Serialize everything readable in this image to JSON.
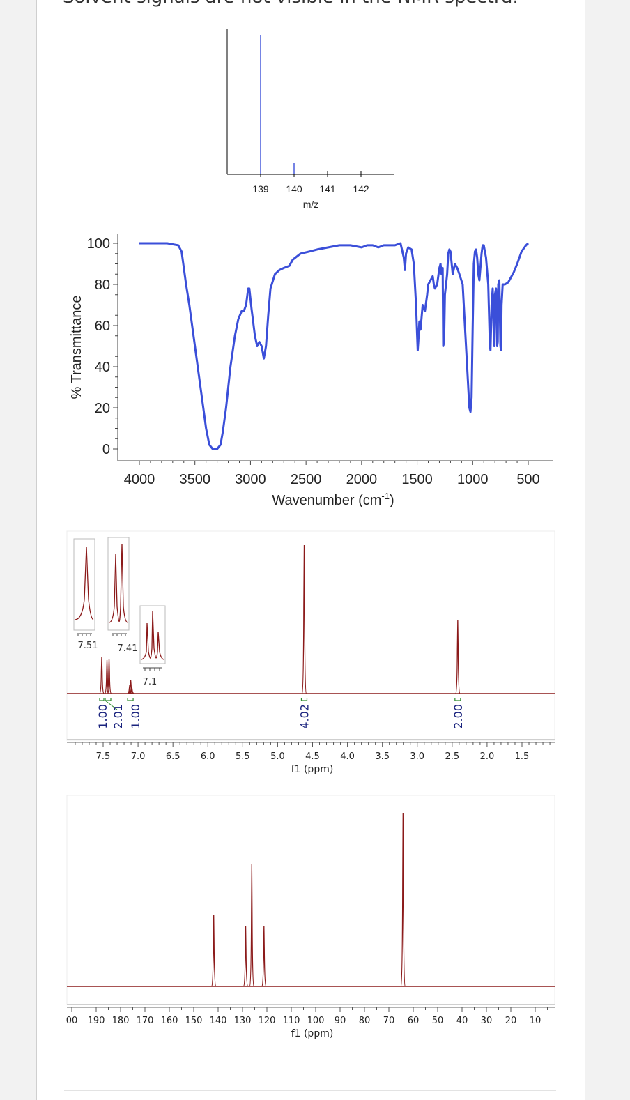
{
  "heading": "Solvent signals are not visible in the NMR spectra.",
  "colors": {
    "ms": "#3b4fd9",
    "ir": "#3b4fd9",
    "nmr": "#8b1a1a",
    "integral": "#2e8b2e",
    "integral_label": "#1a237e"
  },
  "chart_data": [
    {
      "type": "bar",
      "xlabel": "m/z",
      "x_ticks": [
        "139",
        "140",
        "141",
        "142"
      ],
      "xlim": [
        138,
        143
      ],
      "ylim": [
        0,
        100
      ],
      "peaks": [
        {
          "mz": 139,
          "intensity": 100
        },
        {
          "mz": 140,
          "intensity": 8
        }
      ]
    },
    {
      "type": "line",
      "xlabel": "Wavenumber (cm",
      "xlabel_sup": "-1",
      "xlabel_close": ")",
      "ylabel": "% Transmittance",
      "xlim": [
        4200,
        400
      ],
      "ylim": [
        -4,
        104
      ],
      "x_ticks": [
        "4000",
        "3500",
        "3000",
        "2500",
        "2000",
        "1500",
        "1000",
        "500"
      ],
      "y_ticks": [
        "0",
        "20",
        "40",
        "60",
        "80",
        "100"
      ],
      "points": [
        [
          4000,
          100
        ],
        [
          3750,
          100
        ],
        [
          3650,
          99
        ],
        [
          3620,
          96
        ],
        [
          3580,
          80
        ],
        [
          3550,
          70
        ],
        [
          3500,
          50
        ],
        [
          3450,
          30
        ],
        [
          3400,
          10
        ],
        [
          3370,
          2
        ],
        [
          3340,
          0
        ],
        [
          3300,
          0
        ],
        [
          3270,
          2
        ],
        [
          3250,
          8
        ],
        [
          3220,
          20
        ],
        [
          3180,
          40
        ],
        [
          3140,
          55
        ],
        [
          3110,
          63
        ],
        [
          3080,
          67
        ],
        [
          3060,
          67
        ],
        [
          3040,
          70
        ],
        [
          3020,
          78
        ],
        [
          3010,
          78
        ],
        [
          2990,
          68
        ],
        [
          2960,
          55
        ],
        [
          2940,
          50
        ],
        [
          2920,
          52
        ],
        [
          2900,
          50
        ],
        [
          2880,
          44
        ],
        [
          2860,
          50
        ],
        [
          2840,
          65
        ],
        [
          2820,
          78
        ],
        [
          2780,
          85
        ],
        [
          2740,
          87
        ],
        [
          2700,
          88
        ],
        [
          2650,
          89
        ],
        [
          2620,
          92
        ],
        [
          2550,
          95
        ],
        [
          2470,
          96
        ],
        [
          2400,
          97
        ],
        [
          2300,
          98
        ],
        [
          2200,
          99
        ],
        [
          2100,
          99
        ],
        [
          2000,
          98
        ],
        [
          1950,
          99
        ],
        [
          1900,
          99
        ],
        [
          1850,
          98
        ],
        [
          1800,
          99
        ],
        [
          1750,
          99
        ],
        [
          1700,
          99
        ],
        [
          1650,
          100
        ],
        [
          1620,
          93
        ],
        [
          1610,
          87
        ],
        [
          1600,
          95
        ],
        [
          1580,
          98
        ],
        [
          1550,
          97
        ],
        [
          1530,
          90
        ],
        [
          1510,
          70
        ],
        [
          1500,
          55
        ],
        [
          1495,
          48
        ],
        [
          1490,
          52
        ],
        [
          1480,
          62
        ],
        [
          1470,
          58
        ],
        [
          1450,
          70
        ],
        [
          1430,
          67
        ],
        [
          1410,
          75
        ],
        [
          1400,
          80
        ],
        [
          1380,
          82
        ],
        [
          1360,
          84
        ],
        [
          1350,
          80
        ],
        [
          1340,
          78
        ],
        [
          1320,
          80
        ],
        [
          1300,
          88
        ],
        [
          1290,
          90
        ],
        [
          1280,
          85
        ],
        [
          1270,
          88
        ],
        [
          1265,
          50
        ],
        [
          1258,
          52
        ],
        [
          1250,
          75
        ],
        [
          1230,
          85
        ],
        [
          1220,
          95
        ],
        [
          1210,
          97
        ],
        [
          1200,
          96
        ],
        [
          1180,
          85
        ],
        [
          1160,
          90
        ],
        [
          1140,
          88
        ],
        [
          1120,
          85
        ],
        [
          1090,
          80
        ],
        [
          1070,
          60
        ],
        [
          1050,
          40
        ],
        [
          1030,
          20
        ],
        [
          1020,
          18
        ],
        [
          1010,
          25
        ],
        [
          1000,
          60
        ],
        [
          990,
          90
        ],
        [
          980,
          96
        ],
        [
          970,
          97
        ],
        [
          960,
          93
        ],
        [
          950,
          85
        ],
        [
          940,
          82
        ],
        [
          920,
          95
        ],
        [
          910,
          99
        ],
        [
          900,
          99
        ],
        [
          880,
          93
        ],
        [
          860,
          80
        ],
        [
          845,
          50
        ],
        [
          840,
          48
        ],
        [
          830,
          70
        ],
        [
          820,
          78
        ],
        [
          810,
          55
        ],
        [
          805,
          50
        ],
        [
          800,
          75
        ],
        [
          790,
          78
        ],
        [
          780,
          50
        ],
        [
          775,
          52
        ],
        [
          770,
          80
        ],
        [
          760,
          82
        ],
        [
          750,
          50
        ],
        [
          745,
          48
        ],
        [
          740,
          70
        ],
        [
          730,
          80
        ],
        [
          710,
          80
        ],
        [
          680,
          81
        ],
        [
          660,
          83
        ],
        [
          630,
          86
        ],
        [
          600,
          90
        ],
        [
          560,
          96
        ],
        [
          520,
          99
        ],
        [
          500,
          100
        ]
      ]
    },
    {
      "type": "line",
      "xlabel": "f1 (ppm)",
      "xlim": [
        7.98,
        1.0
      ],
      "x_ticks": [
        "7.5",
        "7.0",
        "6.5",
        "6.0",
        "5.5",
        "5.0",
        "4.5",
        "4.0",
        "3.5",
        "3.0",
        "2.5",
        "2.0",
        "1.5"
      ],
      "peaks": [
        {
          "ppm": 7.52,
          "height": 53
        },
        {
          "ppm": 7.445,
          "height": 48
        },
        {
          "ppm": 7.415,
          "height": 50
        },
        {
          "ppm": 7.12,
          "height": 12
        },
        {
          "ppm": 7.105,
          "height": 20
        },
        {
          "ppm": 7.09,
          "height": 10
        },
        {
          "ppm": 4.62,
          "height": 213
        },
        {
          "ppm": 2.42,
          "height": 106
        }
      ],
      "integrals": [
        {
          "label": "1.00",
          "from": 7.55,
          "to": 7.49,
          "center": 7.52
        },
        {
          "label": "2.01",
          "from": 7.47,
          "to": 7.39,
          "center": 7.43
        },
        {
          "label": "1.00",
          "from": 7.15,
          "to": 7.07,
          "center": 7.11
        },
        {
          "label": "4.02",
          "from": 4.66,
          "to": 4.58,
          "center": 4.62
        },
        {
          "label": "2.00",
          "from": 2.46,
          "to": 2.38,
          "center": 2.42
        }
      ],
      "insets": [
        {
          "label": "7.51"
        },
        {
          "label": "7.41"
        },
        {
          "label": "7.1"
        }
      ]
    },
    {
      "type": "line",
      "xlabel": "f1 (ppm)",
      "xlim": [
        200,
        0
      ],
      "x_ticks": [
        "00",
        "190",
        "180",
        "170",
        "160",
        "150",
        "140",
        "130",
        "120",
        "110",
        "100",
        "90",
        "80",
        "70",
        "60",
        "50",
        "40",
        "30",
        "20",
        "10"
      ],
      "peaks": [
        {
          "ppm": 141.8,
          "height": 103
        },
        {
          "ppm": 128.7,
          "height": 87
        },
        {
          "ppm": 126.2,
          "height": 175
        },
        {
          "ppm": 121.2,
          "height": 87
        },
        {
          "ppm": 64.2,
          "height": 248
        }
      ]
    }
  ]
}
